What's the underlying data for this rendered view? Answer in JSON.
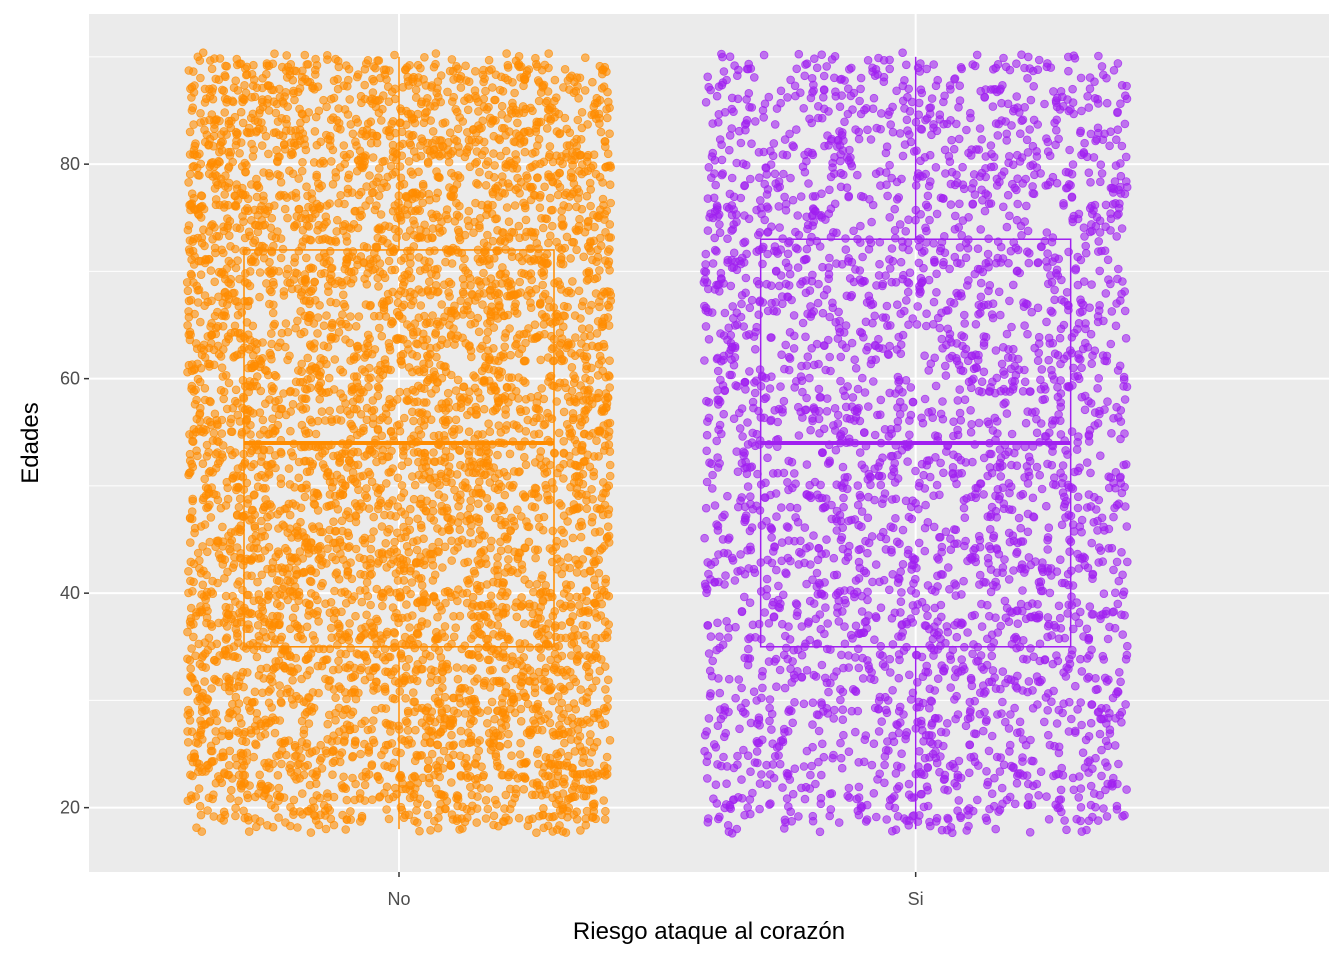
{
  "chart_data": {
    "type": "scatter",
    "subtype": "jitter-with-boxplot",
    "title": "",
    "xlabel": "Riesgo ataque al corazón",
    "ylabel": "Edades",
    "categories": [
      "No",
      "Si"
    ],
    "ylim": [
      14,
      94
    ],
    "yticks": [
      20,
      40,
      60,
      80
    ],
    "grid": true,
    "legend": "none",
    "background": "#ebebeb",
    "series": [
      {
        "category": "No",
        "color": "#ff8c00",
        "point_count": 5500,
        "value_range": [
          18,
          90
        ],
        "boxplot": {
          "min": 18,
          "q1": 35,
          "median": 54,
          "q3": 72,
          "max": 90
        }
      },
      {
        "category": "Si",
        "color": "#a020f0",
        "point_count": 3200,
        "value_range": [
          18,
          90
        ],
        "boxplot": {
          "min": 18,
          "q1": 35,
          "median": 54,
          "q3": 73,
          "max": 90
        }
      }
    ]
  }
}
